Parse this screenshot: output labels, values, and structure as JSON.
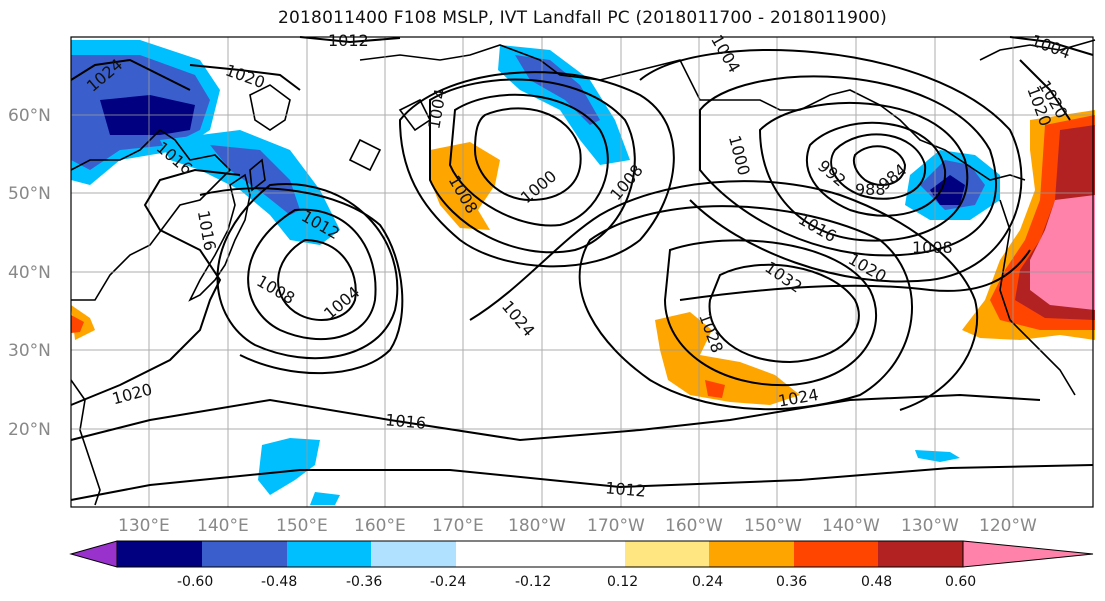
{
  "title": "2018011400 F108 MSLP, IVT Landfall PC (2018011700 - 2018011900)",
  "lat_labels": [
    "60°N",
    "50°N",
    "40°N",
    "30°N",
    "20°N"
  ],
  "lon_labels": [
    "130°E",
    "140°E",
    "150°E",
    "160°E",
    "170°E",
    "180°W",
    "170°W",
    "160°W",
    "150°W",
    "140°W",
    "130°W",
    "120°W"
  ],
  "colorbar": {
    "colors": [
      "#9932CC",
      "#000080",
      "#3A5FCD",
      "#00BFFF",
      "#B0E2FF",
      "#FFFFFF",
      "#FFFFFF",
      "#FFE680",
      "#FFA500",
      "#FF4500",
      "#B22222",
      "#FF82AB"
    ],
    "tick_labels": [
      "-0.60",
      "-0.48",
      "-0.36",
      "-0.24",
      "-0.12",
      "0.12",
      "0.24",
      "0.36",
      "0.48",
      "0.60"
    ]
  },
  "contour_labels": [
    "1024",
    "1020",
    "1012",
    "1004",
    "1004",
    "1020",
    "1016",
    "1008",
    "1004",
    "1012",
    "1016",
    "1008",
    "1000",
    "1008",
    "1024",
    "1028",
    "1032",
    "1020",
    "1016",
    "992",
    "984",
    "988",
    "1008",
    "1000",
    "1020",
    "1020",
    "1016",
    "1012",
    "1024",
    "1004"
  ]
}
